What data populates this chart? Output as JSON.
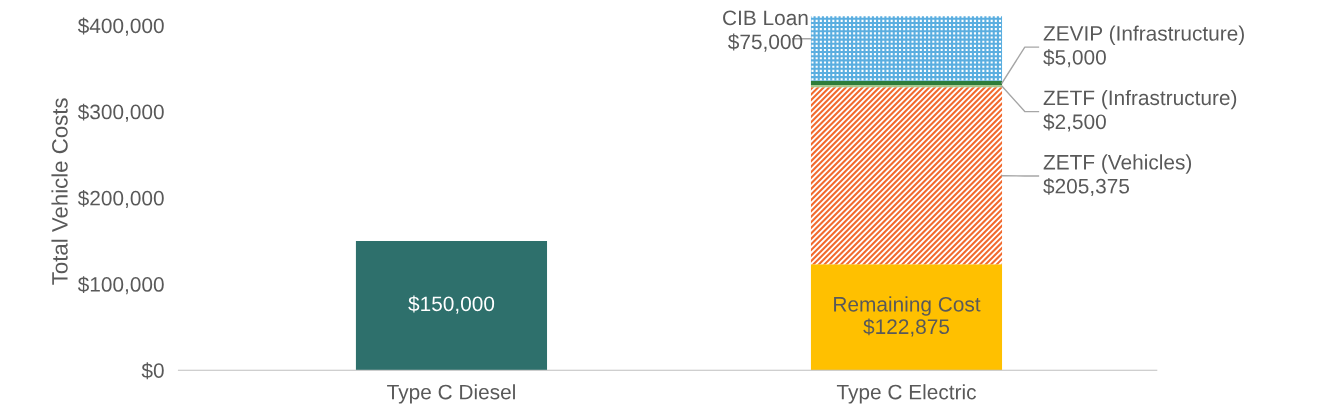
{
  "chart_data": {
    "type": "bar",
    "stacked": true,
    "ylabel": "Total Vehicle Costs",
    "categories": [
      "Type C Diesel",
      "Type C Electric"
    ],
    "series": [
      {
        "name": null,
        "color": "#2e706c",
        "values": [
          150000,
          null
        ],
        "value_labels": [
          "$150,000",
          null
        ]
      },
      {
        "name": "Remaining Cost",
        "color": "#ffc000",
        "values": [
          null,
          122875
        ],
        "value_labels": [
          null,
          "$122,875"
        ]
      },
      {
        "name": "ZETF (Vehicles)",
        "color": "#f26a2e",
        "values": [
          null,
          205375
        ],
        "value_labels": [
          null,
          "$205,375"
        ]
      },
      {
        "name": "ZETF (Infrastructure)",
        "color": "#a9c98e",
        "values": [
          null,
          2500
        ],
        "value_labels": [
          null,
          "$2,500"
        ]
      },
      {
        "name": "ZEVIP (Infrastructure)",
        "color": "#2e7d3a",
        "values": [
          null,
          5000
        ],
        "value_labels": [
          null,
          "$5,000"
        ]
      },
      {
        "name": "CIB Loan",
        "color": "#5aaee0",
        "values": [
          null,
          75000
        ],
        "value_labels": [
          null,
          "$75,000"
        ]
      }
    ],
    "ylim": [
      0,
      415000
    ],
    "yticks": [
      {
        "value": 0,
        "label": "$0"
      },
      {
        "value": 100000,
        "label": "$100,000"
      },
      {
        "value": 200000,
        "label": "$200,000"
      },
      {
        "value": 300000,
        "label": "$300,000"
      },
      {
        "value": 400000,
        "label": "$400,000"
      }
    ],
    "grid": false,
    "legend": false
  }
}
